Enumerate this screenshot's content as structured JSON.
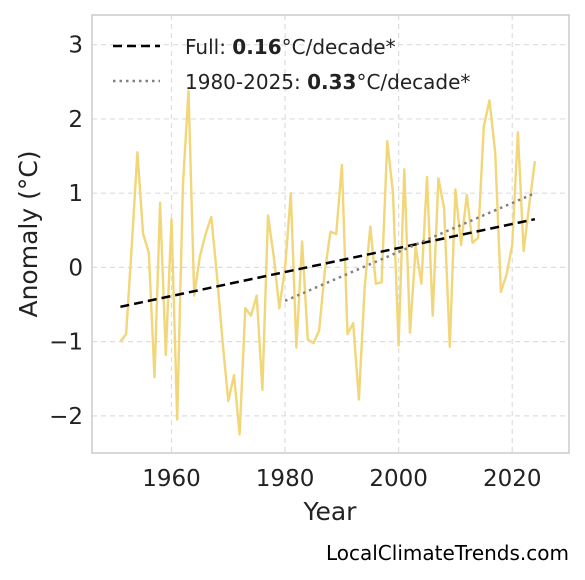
{
  "chart_data": {
    "type": "line",
    "xlabel": "Year",
    "ylabel": "Anomaly (°C)",
    "xlim": [
      1946,
      2030
    ],
    "ylim": [
      -2.5,
      3.4
    ],
    "xticks": [
      1960,
      1980,
      2000,
      2020
    ],
    "yticks": [
      -2,
      -1,
      0,
      1,
      2,
      3
    ],
    "ytick_labels": [
      "−2",
      "−1",
      "0",
      "1",
      "2",
      "3"
    ],
    "grid": true,
    "legend_position": "top-left",
    "series": [
      {
        "color": "#f2d67a",
        "style": "solid",
        "x": [
          1951,
          1952,
          1953,
          1954,
          1955,
          1956,
          1957,
          1958,
          1959,
          1960,
          1961,
          1962,
          1963,
          1964,
          1965,
          1966,
          1967,
          1968,
          1969,
          1970,
          1971,
          1972,
          1973,
          1974,
          1975,
          1976,
          1977,
          1978,
          1979,
          1980,
          1981,
          1982,
          1983,
          1984,
          1985,
          1986,
          1987,
          1988,
          1989,
          1990,
          1991,
          1992,
          1993,
          1994,
          1995,
          1996,
          1997,
          1998,
          1999,
          2000,
          2001,
          2002,
          2003,
          2004,
          2005,
          2006,
          2007,
          2008,
          2009,
          2010,
          2011,
          2012,
          2013,
          2014,
          2015,
          2016,
          2017,
          2018,
          2019,
          2020,
          2021,
          2022,
          2023,
          2024
        ],
        "y": [
          -1.0,
          -0.9,
          0.3,
          1.55,
          0.45,
          0.2,
          -1.48,
          0.87,
          -1.18,
          0.65,
          -2.05,
          1.1,
          2.38,
          -0.38,
          0.15,
          0.45,
          0.68,
          -0.1,
          -1.0,
          -1.8,
          -1.45,
          -2.25,
          -0.55,
          -0.65,
          -0.38,
          -1.65,
          0.7,
          0.15,
          -0.55,
          0.0,
          1.0,
          -1.08,
          0.35,
          -0.97,
          -1.02,
          -0.85,
          -0.05,
          0.48,
          0.45,
          1.38,
          -0.9,
          -0.75,
          -1.78,
          -0.28,
          0.55,
          -0.22,
          -0.2,
          1.7,
          1.0,
          -1.05,
          1.32,
          -0.88,
          0.28,
          -0.22,
          1.22,
          -0.65,
          1.2,
          0.8,
          -1.07,
          1.05,
          0.3,
          0.98,
          0.33,
          0.4,
          1.9,
          2.25,
          1.55,
          -0.33,
          -0.1,
          0.3,
          1.82,
          0.22,
          0.85,
          1.43
        ]
      },
      {
        "color": "#000000",
        "style": "dashed",
        "x": [
          1951,
          2024
        ],
        "y": [
          -0.53,
          0.65
        ]
      },
      {
        "color": "#808080",
        "style": "dotted",
        "x": [
          1980,
          2024
        ],
        "y": [
          -0.45,
          1.0
        ]
      }
    ],
    "legend": [
      {
        "style": "dashed",
        "color": "#000000",
        "prefix": "Full: ",
        "value": "0.16",
        "suffix": "°C/decade*"
      },
      {
        "style": "dotted",
        "color": "#808080",
        "prefix": "1980-2025: ",
        "value": "0.33",
        "suffix": "°C/decade*"
      }
    ]
  },
  "watermark": "LocalClimateTrends.com"
}
